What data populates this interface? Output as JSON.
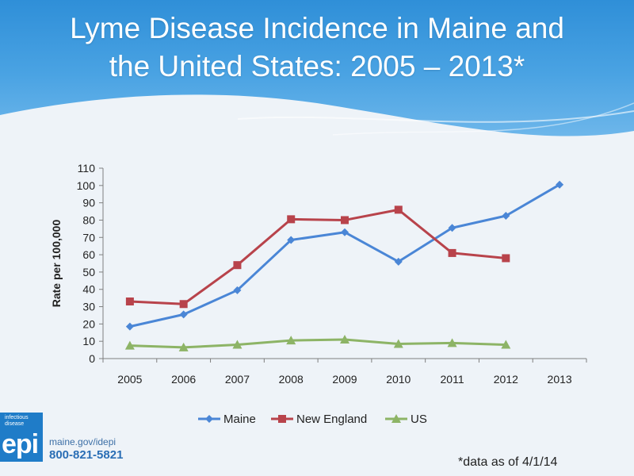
{
  "slide": {
    "title_line1": "Lyme Disease Incidence in Maine and",
    "title_line2": "the United States: 2005 – 2013*",
    "footnote": "*data as of 4/1/14"
  },
  "logo": {
    "small_text": "infectious disease",
    "big_text": "epi",
    "url": "maine.gov/idepi",
    "phone": "800-821-5821"
  },
  "colors": {
    "header": "#3d9ae0",
    "maine": "#4a86d6",
    "new_england": "#b8434b",
    "us": "#8db466"
  },
  "chart_data": {
    "type": "line",
    "title": "",
    "xlabel": "",
    "ylabel": "Rate per 100,000",
    "categories": [
      "2005",
      "2006",
      "2007",
      "2008",
      "2009",
      "2010",
      "2011",
      "2012",
      "2013"
    ],
    "ylim": [
      0,
      110
    ],
    "yticks": [
      0,
      10,
      20,
      30,
      40,
      50,
      60,
      70,
      80,
      90,
      100,
      110
    ],
    "grid": false,
    "legend_position": "bottom",
    "series": [
      {
        "name": "Maine",
        "marker": "diamond",
        "values": [
          18.5,
          25.5,
          39.5,
          68.5,
          73,
          56,
          75.5,
          82.5,
          100.5
        ]
      },
      {
        "name": "New England",
        "marker": "square",
        "values": [
          33,
          31.5,
          54,
          80.5,
          80,
          86,
          61,
          58,
          null
        ]
      },
      {
        "name": "US",
        "marker": "triangle",
        "values": [
          7.5,
          6.5,
          8,
          10.5,
          11,
          8.5,
          9,
          8,
          null
        ]
      }
    ]
  }
}
